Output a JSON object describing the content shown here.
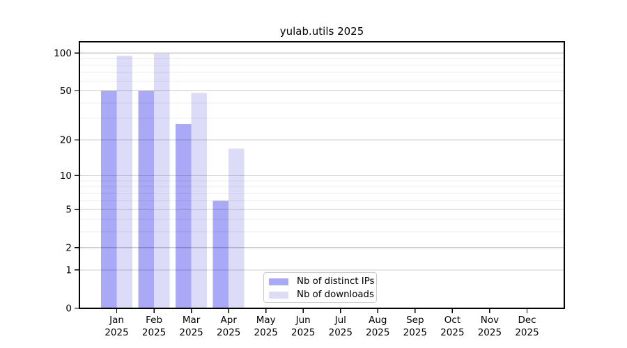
{
  "figure": {
    "title": "yulab.utils 2025"
  },
  "legend": {
    "items": [
      {
        "label": "Nb of distinct IPs",
        "color": "#a9a9f7"
      },
      {
        "label": "Nb of downloads",
        "color": "#dcdcf8"
      }
    ]
  },
  "colors": {
    "bar_dark": "#a9a9f7",
    "bar_light": "#dcdcf8",
    "grid_major": "rgba(0,0,0,0.20)",
    "grid_minor": "rgba(0,0,0,0.075)",
    "spine": "#000000",
    "legend_border": "#cccccc",
    "background": "#ffffff"
  },
  "chart_data": {
    "type": "bar",
    "title": "yulab.utils 2025",
    "months": [
      "Jan",
      "Feb",
      "Mar",
      "Apr",
      "May",
      "Jun",
      "Jul",
      "Aug",
      "Sep",
      "Oct",
      "Nov",
      "Dec"
    ],
    "year_label": "2025",
    "series": [
      {
        "name": "Nb of distinct IPs",
        "color": "#a9a9f7",
        "values": [
          50,
          50,
          27,
          6,
          0,
          0,
          0,
          0,
          0,
          0,
          0,
          0
        ]
      },
      {
        "name": "Nb of downloads",
        "color": "#dcdcf8",
        "values": [
          95,
          99,
          48,
          17,
          0,
          0,
          0,
          0,
          0,
          0,
          0,
          0
        ]
      }
    ],
    "yscale": "log1p",
    "ylim": [
      0,
      124
    ],
    "yticks": [
      100,
      50,
      20,
      10,
      5,
      2,
      1,
      0
    ],
    "ytick_labels": [
      "100",
      "50",
      "20",
      "10",
      "5",
      "2",
      "1",
      "0"
    ],
    "minor_gridlines": [
      90,
      80,
      70,
      60,
      40,
      30,
      9,
      8,
      7,
      6,
      4,
      3
    ],
    "grid": "horizontal",
    "legend_position": "lower center"
  }
}
